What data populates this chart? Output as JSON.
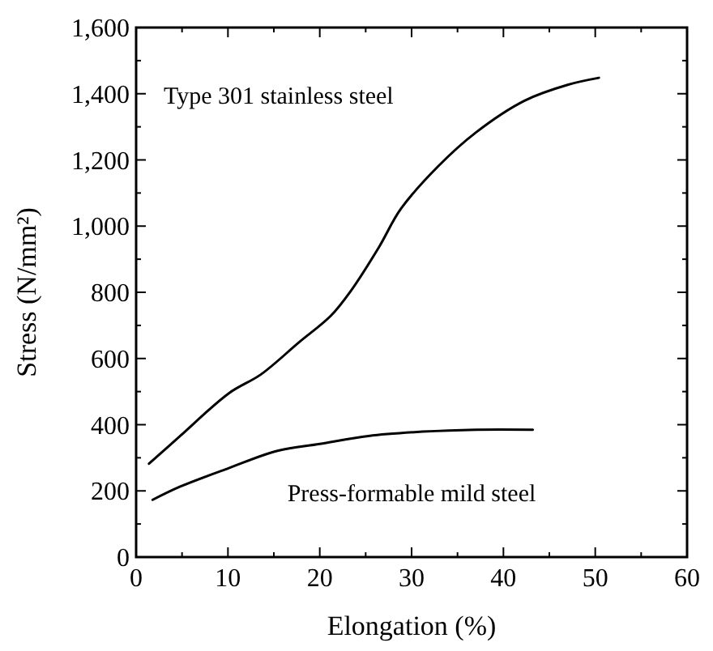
{
  "chart_data": {
    "type": "line",
    "xlabel": "Elongation (%)",
    "ylabel": "Stress (N/mm²)",
    "xlim": [
      0,
      60
    ],
    "ylim": [
      0,
      1600
    ],
    "xticks": [
      0,
      10,
      20,
      30,
      40,
      50,
      60
    ],
    "yticks": [
      0,
      {
        "value": 200,
        "label": "200"
      },
      {
        "value": 400,
        "label": "400"
      },
      {
        "value": 600,
        "label": "600"
      },
      {
        "value": 800,
        "label": "800"
      },
      {
        "value": 1000,
        "label": "1,000"
      },
      {
        "value": 1200,
        "label": "1,200"
      },
      {
        "value": 1400,
        "label": "1,400"
      },
      {
        "value": 1600,
        "label": "1,600"
      }
    ],
    "grid": false,
    "marker": "none",
    "line_style": "solid",
    "series": [
      {
        "name": "Type 301 stainless steel",
        "color": "#000000",
        "x": [
          1.4,
          4.8,
          10.1,
          13.6,
          17.7,
          21.2,
          23.3,
          26.5,
          28.8,
          32.9,
          37,
          42.3,
          47,
          50.4
        ],
        "values": [
          282,
          366,
          495,
          552,
          648,
          729,
          801,
          939,
          1051,
          1181,
          1283,
          1379,
          1427,
          1448
        ]
      },
      {
        "name": "Press-formable mild steel",
        "color": "#000000",
        "x": [
          1.8,
          4.8,
          10.1,
          15.4,
          20,
          25.3,
          31.2,
          37,
          43.2
        ],
        "values": [
          173,
          213,
          269,
          321,
          342,
          366,
          379,
          385,
          385
        ]
      }
    ]
  }
}
